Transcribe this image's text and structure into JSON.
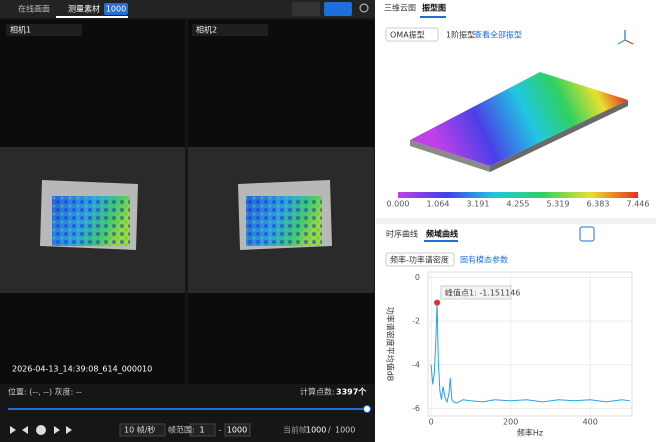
{
  "left_panel": {
    "tabs": [
      "在线画面",
      "测量素材"
    ],
    "badge": "1000",
    "cameras": [
      "相机1",
      "相机2"
    ],
    "timestamp": "2026-04-13_14:39:08_614_000010",
    "position": "位置: (--, --) 灰度: --",
    "point_count_label": "计算点数:",
    "point_count": "3397个",
    "controls": {
      "fps": "10 帧/秒",
      "range_label": "帧范围:",
      "range_start": "1",
      "range_sep": "-",
      "range_end": "1000",
      "current_label": "当前帧",
      "current": "1000",
      "slash": "/",
      "total": "1000"
    }
  },
  "right_panel": {
    "tabs": [
      "三维云图",
      "振型图"
    ],
    "mode": "OMA振型",
    "order": "1阶振型",
    "view_all": "查看全部振型",
    "colorbar_ticks": [
      "0.000",
      "1.064",
      "3.191",
      "4.255",
      "5.319",
      "6.383",
      "7.446"
    ],
    "curve_tabs": [
      "时序曲线",
      "频域曲线"
    ],
    "curve_mode": "频率-功率谱密度",
    "modal_params": "固有模态参数"
  },
  "chart_data": {
    "type": "line",
    "x_label": "频率Hz",
    "y_label": "功率谱密度平均值dB",
    "x": [
      0,
      4,
      8,
      12,
      15,
      18,
      22,
      26,
      30,
      35,
      40,
      45,
      48,
      52,
      56,
      65,
      80,
      100,
      130,
      160,
      200,
      240,
      280,
      320,
      360,
      400,
      440,
      480,
      500
    ],
    "series": [
      {
        "color": "#29a3e0",
        "values": [
          -4.0,
          -4.9,
          -4.4,
          -2.8,
          -1.151146,
          -3.8,
          -5.2,
          -5.6,
          -5.0,
          -5.5,
          -5.7,
          -5.3,
          -4.6,
          -5.6,
          -5.7,
          -5.75,
          -5.6,
          -5.65,
          -5.7,
          -5.6,
          -5.65,
          -5.6,
          -5.7,
          -5.6,
          -5.65,
          -5.6,
          -5.7,
          -5.6,
          -5.65
        ]
      }
    ],
    "xlim": [
      -28,
      500
    ],
    "ylim": [
      -6.3,
      0.25
    ],
    "xticks": [
      0,
      200,
      400
    ],
    "yticks": [
      -6,
      -4,
      -2,
      0
    ],
    "grid": true,
    "annotation": {
      "text": "峰值点1: -1.151146",
      "point": 4,
      "color": "#e03030"
    }
  }
}
